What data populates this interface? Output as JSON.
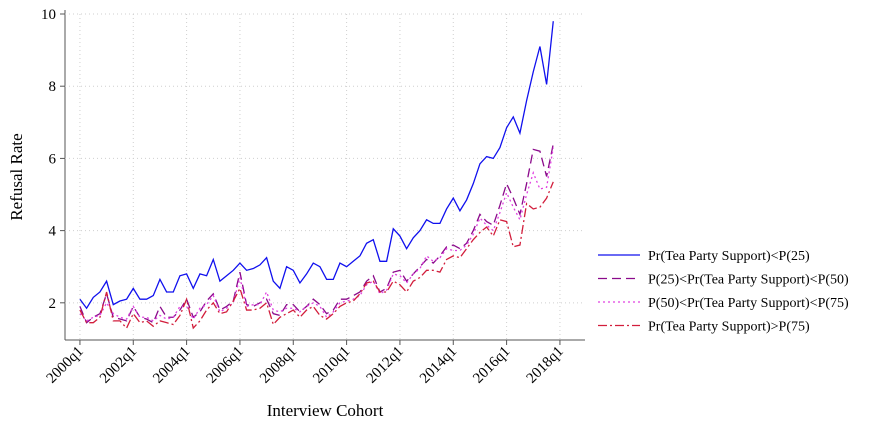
{
  "chart_data": {
    "type": "line",
    "xlabel": "Interview Cohort",
    "ylabel": "Refusal Rate",
    "x": [
      2000,
      2000.25,
      2000.5,
      2000.75,
      2001,
      2001.25,
      2001.5,
      2001.75,
      2002,
      2002.25,
      2002.5,
      2002.75,
      2003,
      2003.25,
      2003.5,
      2003.75,
      2004,
      2004.25,
      2004.5,
      2004.75,
      2005,
      2005.25,
      2005.5,
      2005.75,
      2006,
      2006.25,
      2006.5,
      2006.75,
      2007,
      2007.25,
      2007.5,
      2007.75,
      2008,
      2008.25,
      2008.5,
      2008.75,
      2009,
      2009.25,
      2009.5,
      2009.75,
      2010,
      2010.25,
      2010.5,
      2010.75,
      2011,
      2011.25,
      2011.5,
      2011.75,
      2012,
      2012.25,
      2012.5,
      2012.75,
      2013,
      2013.25,
      2013.5,
      2013.75,
      2014,
      2014.25,
      2014.5,
      2014.75,
      2015,
      2015.25,
      2015.5,
      2015.75,
      2016,
      2016.25,
      2016.5,
      2016.75,
      2017,
      2017.25,
      2017.5,
      2017.75
    ],
    "series": [
      {
        "name": "Pr(Tea Party Support)<P(25)",
        "color": "#1010ee",
        "dash": "solid",
        "values": [
          2.1,
          1.85,
          2.15,
          2.3,
          2.6,
          1.95,
          2.05,
          2.1,
          2.4,
          2.1,
          2.1,
          2.2,
          2.65,
          2.3,
          2.3,
          2.75,
          2.8,
          2.4,
          2.8,
          2.75,
          3.2,
          2.6,
          2.75,
          2.9,
          3.1,
          2.9,
          2.95,
          3.05,
          3.25,
          2.6,
          2.4,
          3.0,
          2.9,
          2.55,
          2.8,
          3.1,
          3.0,
          2.65,
          2.65,
          3.1,
          3.0,
          3.15,
          3.3,
          3.65,
          3.75,
          3.15,
          3.15,
          4.05,
          3.85,
          3.5,
          3.8,
          4.0,
          4.3,
          4.2,
          4.2,
          4.6,
          4.9,
          4.55,
          4.85,
          5.3,
          5.85,
          6.05,
          6.0,
          6.3,
          6.85,
          7.15,
          6.7,
          7.6,
          8.4,
          9.1,
          8.05,
          9.8
        ]
      },
      {
        "name": "P(25)<Pr(Tea Party Support)<P(50)",
        "color": "#8b0a8b",
        "dash": "dashed",
        "values": [
          1.9,
          1.45,
          1.6,
          1.7,
          2.25,
          1.6,
          1.55,
          1.5,
          1.9,
          1.6,
          1.55,
          1.45,
          1.9,
          1.6,
          1.6,
          1.8,
          2.1,
          1.6,
          1.75,
          2.05,
          2.25,
          1.8,
          1.9,
          2.05,
          2.85,
          1.95,
          1.9,
          2.0,
          2.1,
          1.7,
          1.65,
          1.95,
          1.95,
          1.75,
          1.9,
          2.1,
          1.95,
          1.7,
          1.8,
          2.1,
          2.1,
          2.2,
          2.3,
          2.6,
          2.75,
          2.3,
          2.4,
          2.85,
          2.9,
          2.6,
          2.8,
          3.0,
          3.2,
          3.1,
          3.3,
          3.55,
          3.6,
          3.5,
          3.65,
          4.0,
          4.45,
          4.25,
          4.15,
          4.7,
          5.3,
          4.9,
          4.45,
          5.3,
          6.25,
          6.2,
          5.5,
          6.4
        ]
      },
      {
        "name": "P(50)<Pr(Tea Party Support)<P(75)",
        "color": "#e040e0",
        "dash": "dotted",
        "values": [
          1.7,
          1.5,
          1.6,
          1.65,
          2.0,
          1.7,
          1.6,
          1.55,
          1.9,
          1.6,
          1.6,
          1.5,
          1.65,
          1.55,
          1.6,
          1.9,
          1.9,
          1.55,
          1.85,
          1.95,
          2.2,
          1.75,
          1.85,
          2.0,
          2.7,
          1.9,
          1.95,
          1.95,
          2.3,
          1.8,
          1.75,
          1.85,
          1.85,
          1.75,
          1.9,
          2.0,
          1.9,
          1.6,
          1.75,
          2.0,
          2.05,
          2.1,
          2.2,
          2.5,
          2.6,
          2.25,
          2.35,
          2.8,
          2.75,
          2.55,
          2.8,
          2.95,
          3.3,
          3.15,
          3.25,
          3.5,
          3.45,
          3.45,
          3.6,
          3.9,
          4.35,
          4.15,
          4.0,
          4.5,
          5.05,
          4.65,
          4.3,
          5.0,
          5.6,
          5.15,
          5.2,
          6.3
        ]
      },
      {
        "name": "Pr(Tea Party Support)>P(75)",
        "color": "#d21e3c",
        "dash": "dashdot",
        "values": [
          1.8,
          1.45,
          1.45,
          1.6,
          2.3,
          1.5,
          1.5,
          1.3,
          1.7,
          1.45,
          1.5,
          1.35,
          1.5,
          1.45,
          1.4,
          1.65,
          2.1,
          1.3,
          1.5,
          1.8,
          2.0,
          1.7,
          1.75,
          2.05,
          2.4,
          1.8,
          1.8,
          1.85,
          2.0,
          1.4,
          1.6,
          1.7,
          1.8,
          1.6,
          1.8,
          1.9,
          1.65,
          1.55,
          1.7,
          1.9,
          2.0,
          2.05,
          2.25,
          2.55,
          2.6,
          2.3,
          2.3,
          2.6,
          2.5,
          2.3,
          2.6,
          2.7,
          2.9,
          2.9,
          2.85,
          3.2,
          3.3,
          3.25,
          3.5,
          3.75,
          3.95,
          4.1,
          3.85,
          4.3,
          4.25,
          3.55,
          3.6,
          4.75,
          4.6,
          4.65,
          4.9,
          5.35
        ]
      }
    ],
    "xlim": [
      1999.44,
      2018.94
    ],
    "xticks": [
      {
        "value": 2000,
        "label": "2000q1"
      },
      {
        "value": 2002,
        "label": "2002q1"
      },
      {
        "value": 2004,
        "label": "2004q1"
      },
      {
        "value": 2006,
        "label": "2006q1"
      },
      {
        "value": 2008,
        "label": "2008q1"
      },
      {
        "value": 2010,
        "label": "2010q1"
      },
      {
        "value": 2012,
        "label": "2012q1"
      },
      {
        "value": 2014,
        "label": "2014q1"
      },
      {
        "value": 2016,
        "label": "2016q1"
      },
      {
        "value": 2018,
        "label": "2018q1"
      }
    ],
    "ylim": [
      0.97,
      10
    ],
    "yticks": [
      2,
      4,
      6,
      8,
      10
    ],
    "grid": true,
    "legend": "right"
  }
}
